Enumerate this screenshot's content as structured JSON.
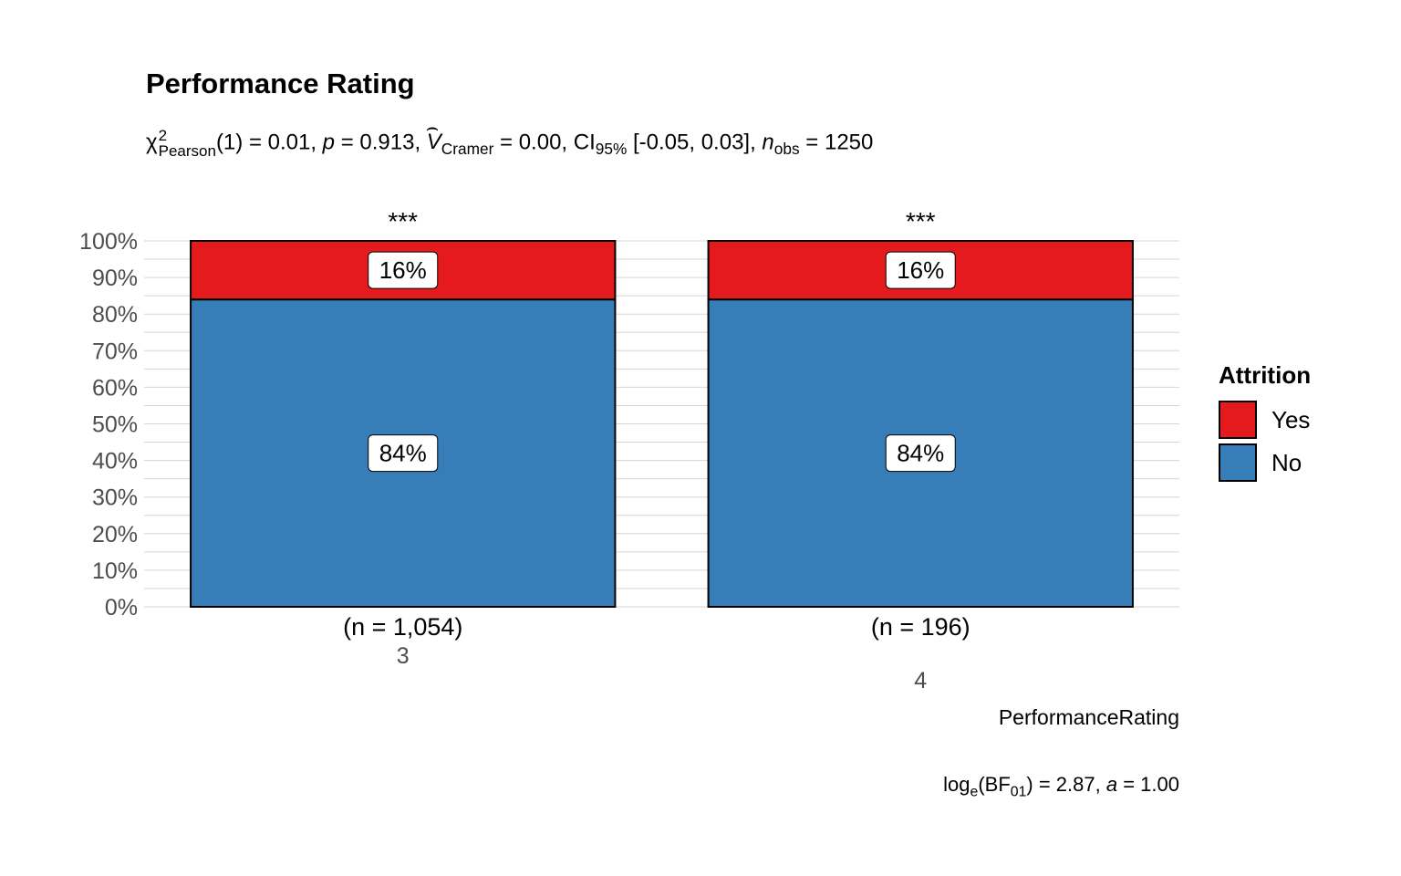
{
  "chart_data": {
    "type": "bar",
    "stacked": true,
    "title": "Performance Rating",
    "subtitle": {
      "statistic": "χ",
      "statistic_sup": "2",
      "statistic_sub": "Pearson",
      "df_part": "(1) = 0.01, ",
      "p_symbol": "p",
      "p_part": " = 0.913, ",
      "effect_symbol": "V",
      "effect_sub": "Cramer",
      "effect_part": " = 0.00, CI",
      "ci_sub": "95%",
      "ci_part": " [-0.05, 0.03], ",
      "n_symbol": "n",
      "n_sub": "obs",
      "n_part": " = 1250"
    },
    "xlabel": "PerformanceRating",
    "ylabel": "",
    "ylim": [
      0,
      100
    ],
    "yticks": [
      "0%",
      "10%",
      "20%",
      "30%",
      "40%",
      "50%",
      "60%",
      "70%",
      "80%",
      "90%",
      "100%"
    ],
    "categories": [
      "3",
      "4"
    ],
    "counts": [
      "(n = 1,054)",
      "(n = 196)"
    ],
    "significance": [
      "***",
      "***"
    ],
    "series": [
      {
        "name": "No",
        "values": [
          84,
          84
        ],
        "labels": [
          "84%",
          "84%"
        ],
        "color": "#377EB8"
      },
      {
        "name": "Yes",
        "values": [
          16,
          16
        ],
        "labels": [
          "16%",
          "16%"
        ],
        "color": "#E41A1C"
      }
    ],
    "legend": {
      "title": "Attrition",
      "placement": "right",
      "items": [
        {
          "name": "Yes",
          "color": "#E41A1C"
        },
        {
          "name": "No",
          "color": "#377EB8"
        }
      ]
    },
    "grid": true,
    "caption": {
      "prefix": "log",
      "prefix_sub": "e",
      "bf": "(BF",
      "bf_sub": "01",
      "value_part": ") = 2.87, ",
      "a_symbol": "a",
      "a_part": " = 1.00"
    }
  }
}
